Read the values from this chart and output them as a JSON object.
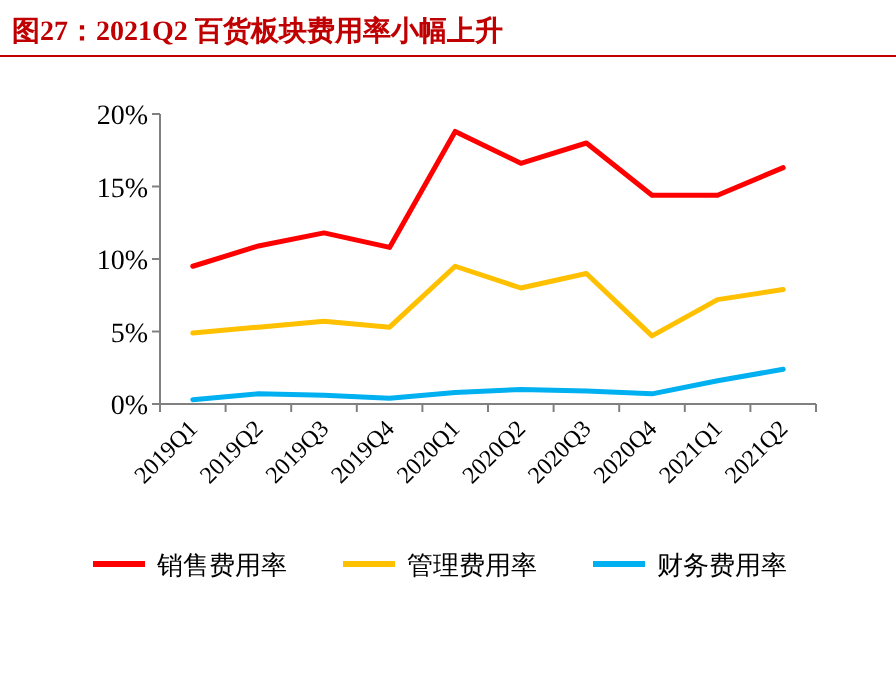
{
  "chart_data": {
    "type": "line",
    "title": "图27：2021Q2 百货板块费用率小幅上升",
    "categories": [
      "2019Q1",
      "2019Q2",
      "2019Q3",
      "2019Q4",
      "2020Q1",
      "2020Q2",
      "2020Q3",
      "2020Q4",
      "2021Q1",
      "2021Q2"
    ],
    "series": [
      {
        "name": "销售费用率",
        "color": "#ff0000",
        "values": [
          9.5,
          10.9,
          11.8,
          10.8,
          18.8,
          16.6,
          18.0,
          14.4,
          14.4,
          16.3
        ]
      },
      {
        "name": "管理费用率",
        "color": "#ffc000",
        "values": [
          4.9,
          5.3,
          5.7,
          5.3,
          9.5,
          8.0,
          9.0,
          4.7,
          7.2,
          7.9
        ]
      },
      {
        "name": "财务费用率",
        "color": "#00b0f0",
        "values": [
          0.3,
          0.7,
          0.6,
          0.4,
          0.8,
          1.0,
          0.9,
          0.7,
          1.6,
          2.4
        ]
      }
    ],
    "ylim": [
      0,
      20
    ],
    "yticks": [
      {
        "value": 0,
        "label": "0%"
      },
      {
        "value": 5,
        "label": "5%"
      },
      {
        "value": 10,
        "label": "10%"
      },
      {
        "value": 15,
        "label": "15%"
      },
      {
        "value": 20,
        "label": "20%"
      }
    ],
    "grid": false,
    "legend": "bottom",
    "marker": "none",
    "line_style": "solid"
  }
}
